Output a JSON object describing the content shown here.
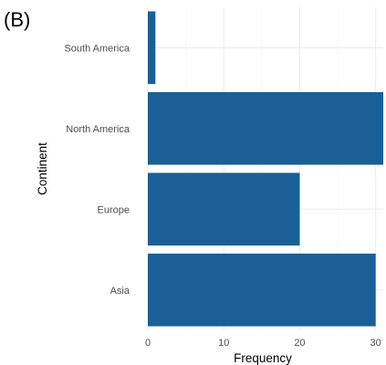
{
  "panel_tag": "(B)",
  "colors": {
    "bar": "#1a6096",
    "grid": "#ebebeb",
    "tick_text": "#4d4d4d"
  },
  "chart_data": {
    "type": "bar",
    "orientation": "horizontal",
    "title": "",
    "xlabel": "Frequency",
    "ylabel": "Continent",
    "categories": [
      "Asia",
      "Europe",
      "North America",
      "South America"
    ],
    "values": [
      30,
      20,
      31,
      1
    ],
    "xlim": [
      0,
      31
    ],
    "x_ticks": [
      0,
      10,
      20,
      30
    ],
    "grid": true,
    "legend": "none"
  }
}
